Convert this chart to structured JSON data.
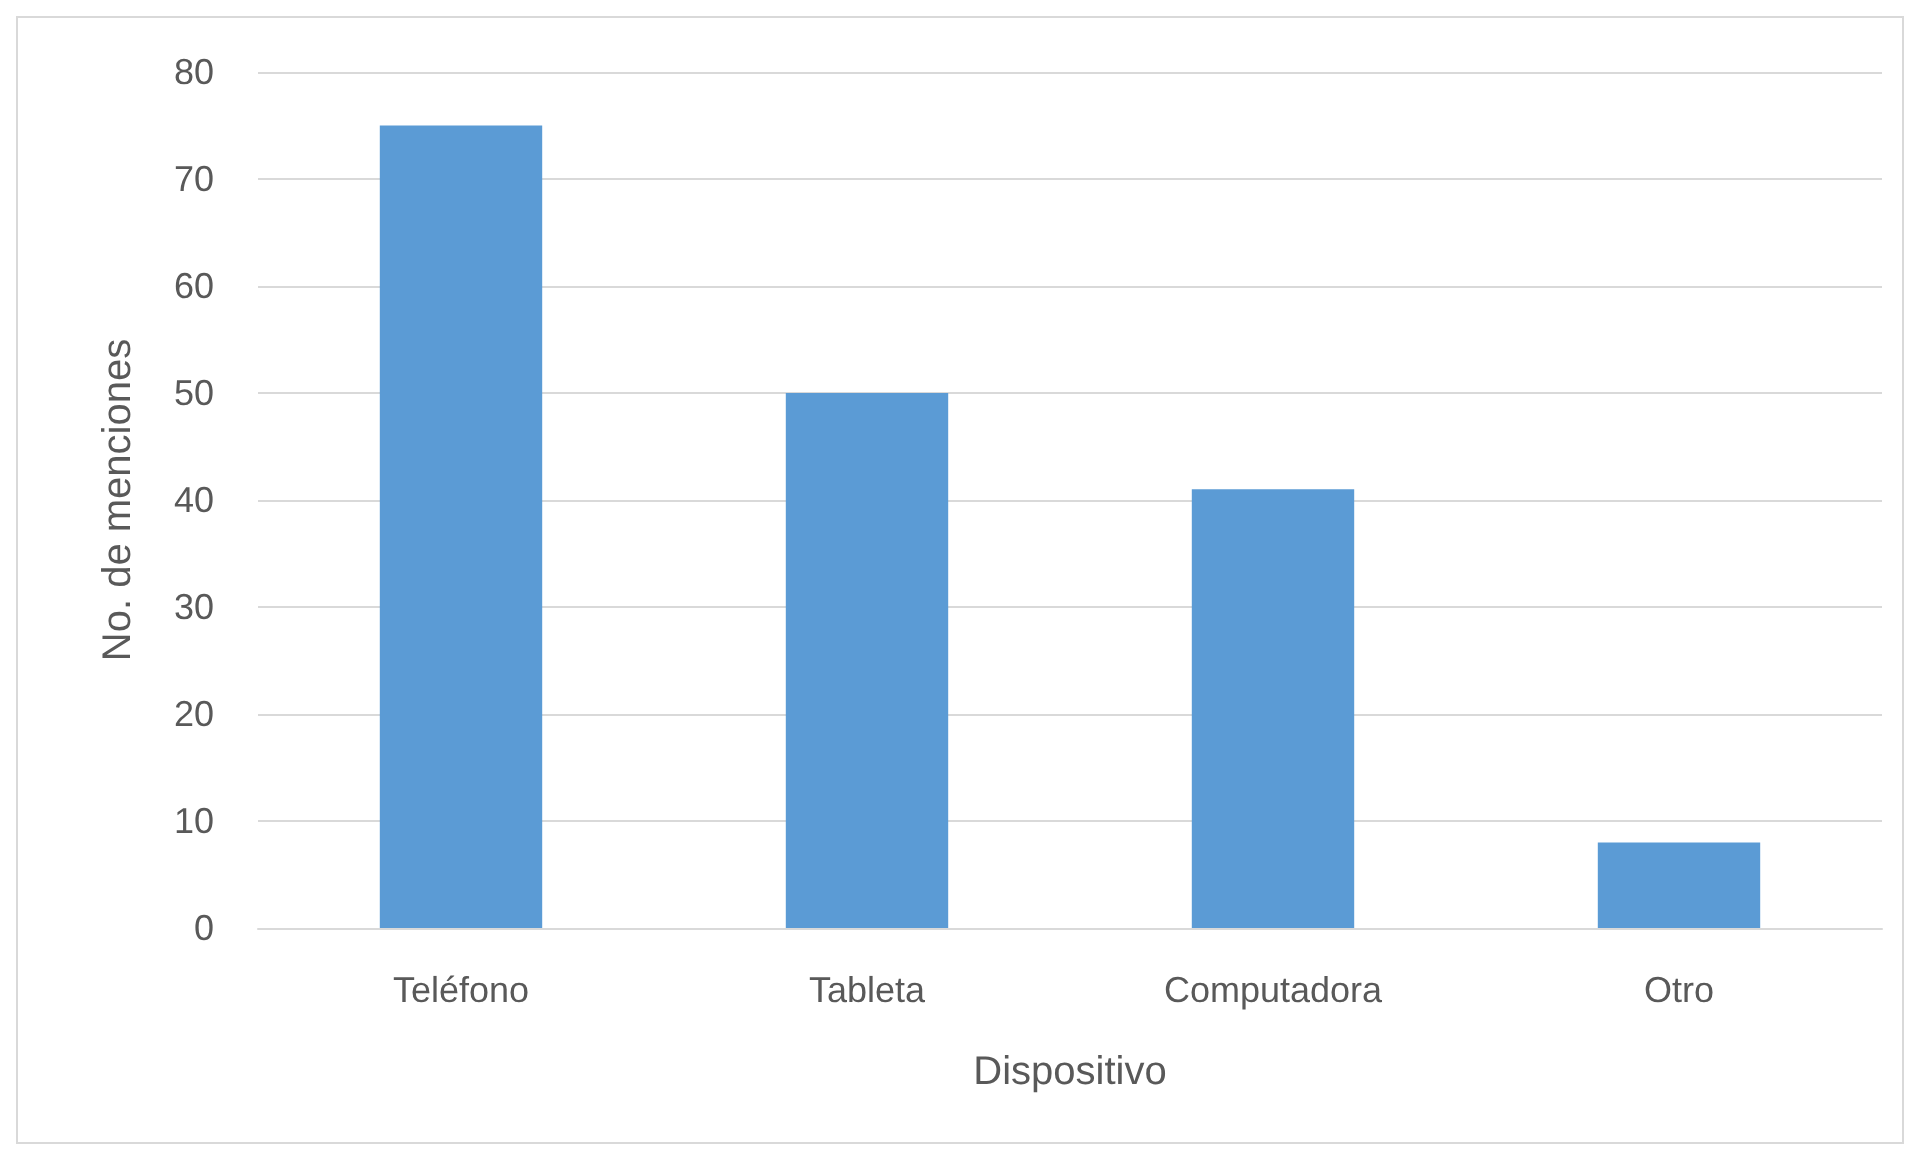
{
  "chart_data": {
    "type": "bar",
    "xlabel": "Dispositivo",
    "ylabel": "No. de menciones",
    "categories": [
      "Teléfono",
      "Tableta",
      "Computadora",
      "Otro"
    ],
    "values": [
      75,
      50,
      41,
      8
    ],
    "color": "#5b9bd5",
    "ylim": [
      0,
      80
    ],
    "yticks": [
      0,
      10,
      20,
      30,
      40,
      50,
      60,
      70,
      80
    ],
    "grid": "y"
  }
}
